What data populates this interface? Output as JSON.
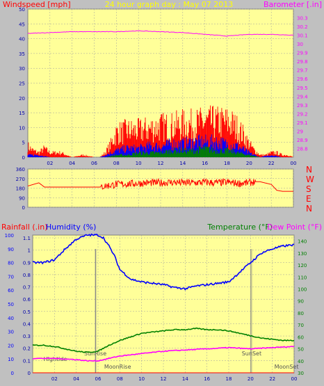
{
  "colors": {
    "background": "#c0c0c0",
    "plot_bg": "#ffff99",
    "grid": "#a0a0a0",
    "wind_gust": "#ff0000",
    "wind_avg": "#0000ff",
    "wind_low": "#008000",
    "barometer": "#ff00ff",
    "direction": "#ff0000",
    "humidity": "#0000ff",
    "temperature": "#008000",
    "dew_point": "#ff00ff",
    "header_title": "#ffff00",
    "text_red": "#ff0000",
    "text_blue": "#0000ff",
    "text_green": "#008000",
    "text_magenta": "#ff00ff",
    "tick_blue": "#0000aa",
    "marker_text": "#555555"
  },
  "header": {
    "windspeed_label": "Windspeed [mph]",
    "title": "24 hour graph day : May 07 2013",
    "barometer_label": "Barometer [.in]"
  },
  "compass_labels": [
    "N",
    "W",
    "S",
    "E",
    "N"
  ],
  "bottom_header": {
    "rainfall_label": "Rainfall (.in)",
    "humidity_label": "Humidity (%)",
    "temperature_label": "Temperature (°F)",
    "dewpoint_label": "Dew Point (°F)"
  },
  "markers": {
    "hightide": "Hightide",
    "sunrise": "SunRise",
    "moonrise": "MoonRise",
    "sunset": "SunSet",
    "moonset": "MoonSet"
  },
  "chart_data": [
    {
      "type": "line",
      "id": "wind",
      "xlabel": "",
      "ylabel": "Windspeed [mph]",
      "x_range": [
        0,
        24
      ],
      "x_ticks": [
        "02",
        "04",
        "06",
        "08",
        "10",
        "12",
        "14",
        "16",
        "18",
        "20",
        "22",
        "00"
      ],
      "ylim": [
        0,
        50
      ],
      "y_ticks": [
        "0",
        "5",
        "10",
        "15",
        "20",
        "25",
        "30",
        "35",
        "40",
        "45",
        "50"
      ],
      "y2_label": "Barometer [.in]",
      "y2_lim": [
        28.7,
        30.4
      ],
      "y2_ticks": [
        "28.8",
        "28.9",
        "29",
        "29.1",
        "29.2",
        "29.3",
        "29.4",
        "29.5",
        "29.6",
        "29.7",
        "29.8",
        "29.9",
        "30",
        "30.1",
        "30.2",
        "30.3"
      ],
      "grid": true,
      "series": [
        {
          "name": "Windspeed [mph]",
          "role": "gust",
          "x": [
            0,
            0.5,
            1,
            1.5,
            2,
            3,
            4,
            5,
            6,
            6.5,
            7,
            7.5,
            8,
            9,
            10,
            11,
            12,
            13,
            14,
            15,
            16,
            17,
            18,
            18.5,
            19,
            19.5,
            20,
            20.5,
            21,
            21.5,
            22,
            22.5,
            23,
            23.5,
            24
          ],
          "y": [
            5,
            3,
            2,
            4,
            2,
            2,
            0,
            1,
            0,
            0,
            2,
            6,
            11,
            12,
            12,
            13,
            14,
            14,
            15,
            15,
            16,
            16,
            16,
            15,
            13,
            10,
            6,
            3,
            1,
            1,
            2,
            2,
            1,
            1,
            0
          ]
        },
        {
          "role": "average",
          "x": [
            0,
            1,
            2,
            3,
            4,
            5,
            6,
            6.5,
            7,
            7.5,
            8,
            9,
            10,
            11,
            12,
            13,
            14,
            15,
            16,
            17,
            18,
            19,
            20,
            20.5,
            21,
            22,
            23,
            24
          ],
          "y": [
            1,
            1,
            0,
            0,
            0,
            0,
            0,
            0,
            1,
            2,
            3,
            4,
            4,
            5,
            5,
            6,
            6,
            7,
            7,
            7,
            6,
            5,
            2,
            1,
            0,
            1,
            0,
            0
          ]
        },
        {
          "role": "low",
          "x": [
            0,
            6.5,
            7,
            8,
            9,
            10,
            11,
            12,
            13,
            14,
            15,
            16,
            17,
            18,
            19,
            20,
            21,
            24
          ],
          "y": [
            0,
            0,
            0,
            1,
            1,
            2,
            2,
            2,
            3,
            3,
            3,
            4,
            3,
            3,
            2,
            1,
            0,
            0
          ]
        },
        {
          "name": "Barometer [.in]",
          "axis": "y2",
          "x": [
            0,
            2,
            4,
            6,
            8,
            10,
            12,
            14,
            16,
            18,
            20,
            22,
            24
          ],
          "y": [
            30.12,
            30.13,
            30.14,
            30.14,
            30.14,
            30.15,
            30.14,
            30.13,
            30.11,
            30.09,
            30.11,
            30.11,
            30.1
          ]
        }
      ]
    },
    {
      "type": "line",
      "id": "direction",
      "xlabel": "",
      "ylabel": "",
      "x_range": [
        0,
        24
      ],
      "ylim": [
        0,
        360
      ],
      "y_ticks": [
        "0",
        "90",
        "180",
        "270",
        "360"
      ],
      "grid": true,
      "series": [
        {
          "role": "wind direction",
          "x": [
            0,
            0.5,
            1,
            1.5,
            2,
            4,
            6,
            6.5,
            7,
            8,
            9,
            10,
            11,
            12,
            13,
            14,
            15,
            16,
            17,
            18,
            19,
            20,
            20.5,
            21,
            22,
            22.5,
            23,
            24
          ],
          "y": [
            200,
            215,
            230,
            190,
            190,
            190,
            190,
            190,
            200,
            215,
            220,
            225,
            230,
            230,
            235,
            230,
            230,
            235,
            230,
            235,
            225,
            230,
            240,
            240,
            215,
            160,
            150,
            150
          ]
        }
      ]
    },
    {
      "type": "line",
      "id": "temp_humidity",
      "xlabel": "",
      "ylabel": "Humidity (%)",
      "x_range": [
        0,
        24
      ],
      "x_ticks": [
        "02",
        "04",
        "06",
        "08",
        "10",
        "12",
        "14",
        "16",
        "18",
        "20",
        "22",
        "00"
      ],
      "ylim": [
        0,
        100
      ],
      "y_ticks": [
        "0",
        "10",
        "20",
        "30",
        "40",
        "50",
        "60",
        "70",
        "80",
        "90",
        "100"
      ],
      "rain_label": "Rainfall (.in)",
      "rain_ticks": [
        "0",
        "0.1",
        "0.2",
        "0.3",
        "0.4",
        "0.5",
        "0.6",
        "0.7",
        "0.8",
        "0.9",
        "1",
        "1.1"
      ],
      "rain_lim": [
        0,
        1.1
      ],
      "y2_label": "Temperature (°F)",
      "y2_lim": [
        30,
        145
      ],
      "y2_ticks": [
        "30",
        "40",
        "50",
        "60",
        "70",
        "80",
        "90",
        "100",
        "110",
        "120",
        "130",
        "140"
      ],
      "grid": true,
      "series": [
        {
          "name": "Humidity (%)",
          "x": [
            0,
            1,
            2,
            3,
            4,
            5,
            6,
            6.5,
            7,
            7.5,
            8,
            9,
            10,
            11,
            12,
            13,
            14,
            15,
            16,
            17,
            18,
            19,
            20,
            21,
            22,
            23,
            24
          ],
          "y": [
            80,
            80,
            82,
            90,
            97,
            100,
            100,
            98,
            92,
            85,
            75,
            68,
            66,
            65,
            64,
            62,
            61,
            63,
            64,
            65,
            66,
            73,
            80,
            87,
            90,
            92,
            93
          ]
        },
        {
          "name": "Temperature (°F)",
          "axis": "y2",
          "x": [
            0,
            1,
            2,
            3,
            4,
            5,
            6,
            7,
            8,
            9,
            10,
            11,
            12,
            13,
            14,
            15,
            16,
            17,
            18,
            19,
            20,
            21,
            22,
            23,
            24
          ],
          "y": [
            53,
            53,
            52,
            50,
            48,
            47,
            48,
            53,
            57,
            60,
            63,
            64,
            65,
            66,
            66,
            67,
            66,
            66,
            65,
            63,
            61,
            59,
            58,
            57,
            57
          ]
        },
        {
          "name": "Dew Point (°F)",
          "axis": "y2",
          "x": [
            0,
            2,
            4,
            5,
            6,
            7,
            8,
            10,
            12,
            14,
            16,
            18,
            20,
            22,
            24
          ],
          "y": [
            42,
            42,
            41,
            40,
            40,
            42,
            44,
            46,
            48,
            49,
            50,
            51,
            50,
            51,
            52
          ]
        },
        {
          "name": "Rainfall (.in)",
          "axis": "rain",
          "x": [
            0,
            24
          ],
          "y": [
            0,
            0
          ]
        }
      ]
    }
  ]
}
